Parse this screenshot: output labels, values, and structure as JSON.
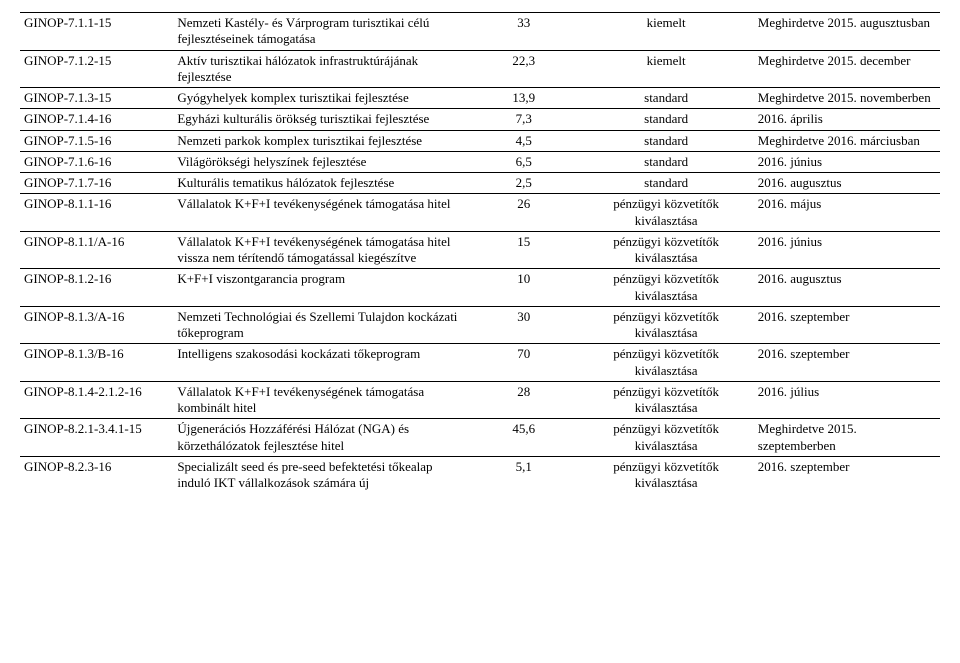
{
  "rows": [
    {
      "code": "GINOP-7.1.1-15",
      "desc": "Nemzeti Kastély- és Várprogram turisztikai célú fejlesztéseinek támogatása",
      "val": "33",
      "cat": "kiemelt",
      "date": "Meghirdetve 2015. augusztusban"
    },
    {
      "code": "GINOP-7.1.2-15",
      "desc": "Aktív turisztikai hálózatok infrastruktúrájának fejlesztése",
      "val": "22,3",
      "cat": "kiemelt",
      "date": "Meghirdetve 2015. december"
    },
    {
      "code": "GINOP-7.1.3-15",
      "desc": "Gyógyhelyek komplex turisztikai fejlesztése",
      "val": "13,9",
      "cat": "standard",
      "date": "Meghirdetve 2015. novemberben"
    },
    {
      "code": "GINOP-7.1.4-16",
      "desc": "Egyházi kulturális örökség turisztikai fejlesztése",
      "val": "7,3",
      "cat": "standard",
      "date": "2016. április"
    },
    {
      "code": "GINOP-7.1.5-16",
      "desc": "Nemzeti parkok komplex turisztikai fejlesztése",
      "val": "4,5",
      "cat": "standard",
      "date": "Meghirdetve 2016. márciusban"
    },
    {
      "code": "GINOP-7.1.6-16",
      "desc": "Világörökségi helyszínek fejlesztése",
      "val": "6,5",
      "cat": "standard",
      "date": "2016. június"
    },
    {
      "code": "GINOP-7.1.7-16",
      "desc": "Kulturális tematikus hálózatok fejlesztése",
      "val": "2,5",
      "cat": "standard",
      "date": "2016. augusztus"
    },
    {
      "code": "GINOP-8.1.1-16",
      "desc": "Vállalatok K+F+I tevékenységének támogatása hitel",
      "val": "26",
      "cat": "pénzügyi közvetítők kiválasztása",
      "date": "2016. május"
    },
    {
      "code": "GINOP-8.1.1/A-16",
      "desc": "Vállalatok K+F+I tevékenységének támogatása hitel vissza nem térítendő támogatással kiegészítve",
      "val": "15",
      "cat": "pénzügyi közvetítők kiválasztása",
      "date": "2016. június"
    },
    {
      "code": "GINOP-8.1.2-16",
      "desc": "K+F+I viszontgarancia program",
      "val": "10",
      "cat": "pénzügyi közvetítők kiválasztása",
      "date": "2016. augusztus"
    },
    {
      "code": "GINOP-8.1.3/A-16",
      "desc": "Nemzeti Technológiai és Szellemi Tulajdon kockázati tőkeprogram",
      "val": "30",
      "cat": "pénzügyi közvetítők kiválasztása",
      "date": "2016. szeptember"
    },
    {
      "code": "GINOP-8.1.3/B-16",
      "desc": "Intelligens szakosodási kockázati tőkeprogram",
      "val": "70",
      "cat": "pénzügyi közvetítők kiválasztása",
      "date": "2016. szeptember"
    },
    {
      "code": "GINOP-8.1.4-2.1.2-16",
      "desc": "Vállalatok K+F+I tevékenységének támogatása kombinált hitel",
      "val": "28",
      "cat": "pénzügyi közvetítők kiválasztása",
      "date": "2016. július"
    },
    {
      "code": "GINOP-8.2.1-3.4.1-15",
      "desc": "Újgenerációs Hozzáférési Hálózat (NGA) és körzethálózatok fejlesztése hitel",
      "val": "45,6",
      "cat": "pénzügyi közvetítők kiválasztása",
      "date": "Meghirdetve 2015. szeptemberben"
    },
    {
      "code": "GINOP-8.2.3-16",
      "desc": "Specializált seed és pre-seed befektetési tőkealap induló IKT vállalkozások számára új",
      "val": "5,1",
      "cat": "pénzügyi közvetítők kiválasztása",
      "date": "2016. szeptember"
    }
  ]
}
